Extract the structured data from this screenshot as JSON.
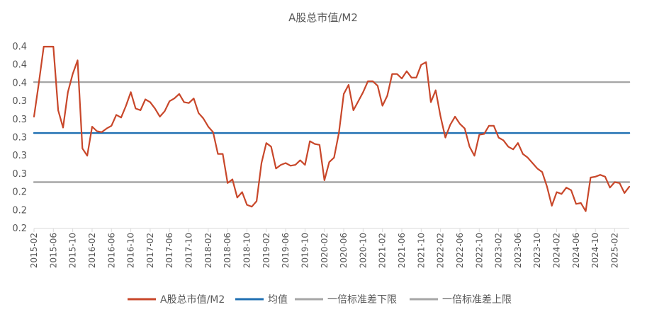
{
  "chart_data": {
    "type": "line",
    "title": "A股总市值/M2",
    "xlabel": "",
    "ylabel": "",
    "y_tick_labels": [
      "0.4",
      "0.4",
      "0.4",
      "0.3",
      "0.3",
      "0.3",
      "0.3",
      "0.3",
      "0.2",
      "0.2",
      "0.2"
    ],
    "x_tick_labels": [
      "2015-02",
      "2015-06",
      "2015-10",
      "2016-02",
      "2016-06",
      "2016-10",
      "2017-02",
      "2017-06",
      "2017-10",
      "2018-02",
      "2018-06",
      "2018-10",
      "2019-02",
      "2019-06",
      "2019-10",
      "2020-02",
      "2020-06",
      "2020-10",
      "2021-02",
      "2021-06",
      "2021-10",
      "2022-02",
      "2022-06",
      "2022-10",
      "2023-02",
      "2023-06",
      "2023-10",
      "2024-02",
      "2024-06",
      "2024-10",
      "2025-02"
    ],
    "ylim": [
      0.2,
      0.4
    ],
    "grid": false,
    "legend_position": "bottom",
    "series": [
      {
        "name": "A股总市值/M2",
        "color": "#C8472A",
        "x": [
          "2015-02",
          "2015-03",
          "2015-04",
          "2015-06",
          "2015-07",
          "2015-08",
          "2015-09",
          "2015-10",
          "2015-11",
          "2015-12",
          "2016-01",
          "2016-02",
          "2016-03",
          "2016-04",
          "2016-05",
          "2016-06",
          "2016-07",
          "2016-08",
          "2016-09",
          "2016-10",
          "2016-11",
          "2016-12",
          "2017-01",
          "2017-02",
          "2017-03",
          "2017-04",
          "2017-05",
          "2017-06",
          "2017-07",
          "2017-08",
          "2017-09",
          "2017-10",
          "2017-11",
          "2017-12",
          "2018-01",
          "2018-02",
          "2018-03",
          "2018-04",
          "2018-05",
          "2018-06",
          "2018-07",
          "2018-08",
          "2018-09",
          "2018-10",
          "2018-11",
          "2018-12",
          "2019-01",
          "2019-02",
          "2019-03",
          "2019-04",
          "2019-05",
          "2019-06",
          "2019-07",
          "2019-08",
          "2019-09",
          "2019-10",
          "2019-11",
          "2019-12",
          "2020-01",
          "2020-02",
          "2020-03",
          "2020-04",
          "2020-05",
          "2020-06",
          "2020-07",
          "2020-08",
          "2020-09",
          "2020-10",
          "2020-11",
          "2020-12",
          "2021-01",
          "2021-02",
          "2021-03",
          "2021-04",
          "2021-05",
          "2021-06",
          "2021-07",
          "2021-08",
          "2021-09",
          "2021-10",
          "2021-11",
          "2021-12",
          "2022-01",
          "2022-02",
          "2022-03",
          "2022-04",
          "2022-05",
          "2022-06",
          "2022-07",
          "2022-08",
          "2022-09",
          "2022-10",
          "2022-11",
          "2022-12",
          "2023-01",
          "2023-02",
          "2023-03",
          "2023-04",
          "2023-05",
          "2023-06",
          "2023-07",
          "2023-08",
          "2023-09",
          "2023-10",
          "2023-11",
          "2023-12",
          "2024-01",
          "2024-02",
          "2024-03",
          "2024-04",
          "2024-05",
          "2024-06",
          "2024-07",
          "2024-08",
          "2024-09",
          "2024-10",
          "2024-11",
          "2024-12",
          "2025-01",
          "2025-02",
          "2025-03",
          "2025-04",
          "2025-05"
        ],
        "values": [
          0.323,
          0.36,
          0.4,
          0.4,
          0.33,
          0.311,
          0.35,
          0.37,
          0.385,
          0.288,
          0.28,
          0.312,
          0.307,
          0.306,
          0.31,
          0.313,
          0.325,
          0.322,
          0.335,
          0.35,
          0.332,
          0.33,
          0.342,
          0.339,
          0.332,
          0.323,
          0.329,
          0.34,
          0.343,
          0.348,
          0.339,
          0.338,
          0.343,
          0.327,
          0.321,
          0.312,
          0.306,
          0.282,
          0.282,
          0.25,
          0.254,
          0.234,
          0.24,
          0.226,
          0.224,
          0.23,
          0.272,
          0.294,
          0.29,
          0.266,
          0.27,
          0.272,
          0.269,
          0.27,
          0.275,
          0.27,
          0.296,
          0.293,
          0.292,
          0.253,
          0.273,
          0.278,
          0.305,
          0.348,
          0.358,
          0.33,
          0.34,
          0.35,
          0.362,
          0.362,
          0.357,
          0.335,
          0.346,
          0.37,
          0.37,
          0.365,
          0.373,
          0.366,
          0.366,
          0.38,
          0.383,
          0.339,
          0.352,
          0.323,
          0.3,
          0.314,
          0.323,
          0.315,
          0.31,
          0.29,
          0.28,
          0.303,
          0.304,
          0.313,
          0.313,
          0.3,
          0.297,
          0.29,
          0.287,
          0.294,
          0.282,
          0.278,
          0.272,
          0.266,
          0.262,
          0.246,
          0.225,
          0.24,
          0.238,
          0.245,
          0.242,
          0.227,
          0.228,
          0.219,
          0.256,
          0.257,
          0.259,
          0.257,
          0.245,
          0.251,
          0.25,
          0.239,
          0.246
        ]
      },
      {
        "name": "均值",
        "color": "#1F6FB2",
        "x": [
          "2015-02",
          "2025-05"
        ],
        "values": [
          0.305,
          0.305
        ]
      },
      {
        "name": "一倍标准差下限",
        "color": "#A6A6A6",
        "x": [
          "2015-02",
          "2025-05"
        ],
        "values": [
          0.251,
          0.251
        ]
      },
      {
        "name": "一倍标准差上限",
        "color": "#A6A6A6",
        "x": [
          "2015-02",
          "2025-05"
        ],
        "values": [
          0.361,
          0.361
        ]
      }
    ]
  }
}
